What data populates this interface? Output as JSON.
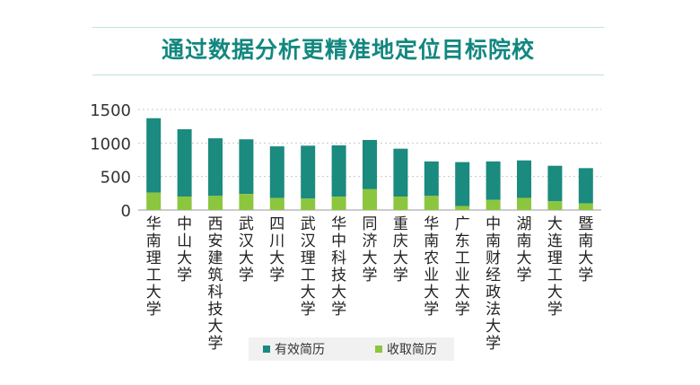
{
  "title": "通过数据分析更精准地定位目标院校",
  "colors": {
    "title": "#12877f",
    "series_a": "#1b8a7f",
    "series_b": "#8cc63e",
    "grid": "#c8c8c8",
    "rule": "#bfe3dd",
    "legend_bg": "#f1f1f1"
  },
  "chart_data": {
    "type": "bar",
    "stacked": true,
    "title": "",
    "xlabel": "",
    "ylabel": "",
    "ylim": [
      0,
      1500
    ],
    "yticks": [
      "0",
      "500",
      "1000",
      "1500"
    ],
    "grid": true,
    "legend_position": "bottom",
    "categories": [
      "华南理工大学",
      "中山大学",
      "西安建筑科技大学",
      "武汉大学",
      "四川大学",
      "武汉理工大学",
      "华中科技大学",
      "同济大学",
      "重庆大学",
      "华南农业大学",
      "广东工业大学",
      "中南财经政法大学",
      "湖南大学",
      "大连理工大学",
      "暨南大学"
    ],
    "series": [
      {
        "name": "收取简历",
        "values": [
          260,
          200,
          210,
          240,
          180,
          170,
          200,
          310,
          200,
          210,
          60,
          150,
          180,
          130,
          100
        ]
      },
      {
        "name": "有效简历",
        "values": [
          1110,
          1005,
          860,
          815,
          770,
          790,
          765,
          735,
          715,
          515,
          655,
          575,
          560,
          530,
          525
        ]
      }
    ]
  }
}
